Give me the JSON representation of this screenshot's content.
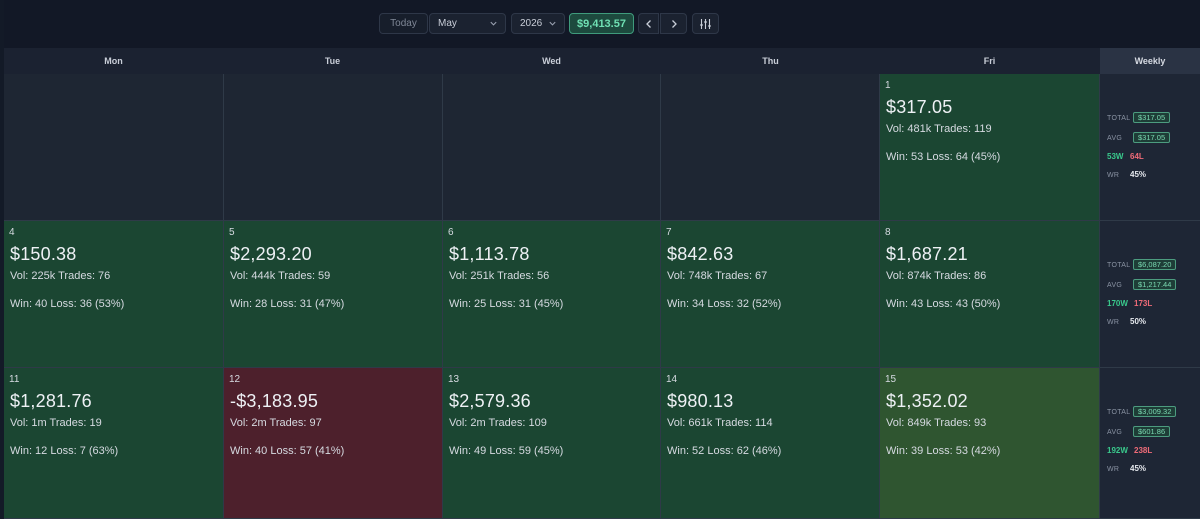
{
  "toolbar": {
    "today_label": "Today",
    "month": "May",
    "year": "2026",
    "total": "$9,413.57"
  },
  "days_header": [
    "Mon",
    "Tue",
    "Wed",
    "Thu",
    "Fri"
  ],
  "weekly_header": "Weekly",
  "weeks": [
    {
      "days": [
        null,
        null,
        null,
        null,
        {
          "day": "1",
          "pnl": "$317.05",
          "vol": "Vol: 481k Trades: 119",
          "wl": "Win: 53 Loss: 64 (45%)",
          "tone": "green"
        }
      ],
      "weekly": {
        "total_label": "TOTAL",
        "total": "$317.05",
        "avg_label": "AVG",
        "avg": "$317.05",
        "wins": "53W",
        "losses": "64L",
        "wr_label": "WR",
        "wr": "45%"
      }
    },
    {
      "days": [
        {
          "day": "4",
          "pnl": "$150.38",
          "vol": "Vol: 225k Trades: 76",
          "wl": "Win: 40 Loss: 36 (53%)",
          "tone": "green"
        },
        {
          "day": "5",
          "pnl": "$2,293.20",
          "vol": "Vol: 444k Trades: 59",
          "wl": "Win: 28 Loss: 31 (47%)",
          "tone": "green"
        },
        {
          "day": "6",
          "pnl": "$1,113.78",
          "vol": "Vol: 251k Trades: 56",
          "wl": "Win: 25 Loss: 31 (45%)",
          "tone": "green"
        },
        {
          "day": "7",
          "pnl": "$842.63",
          "vol": "Vol: 748k Trades: 67",
          "wl": "Win: 34 Loss: 32 (52%)",
          "tone": "green"
        },
        {
          "day": "8",
          "pnl": "$1,687.21",
          "vol": "Vol: 874k Trades: 86",
          "wl": "Win: 43 Loss: 43 (50%)",
          "tone": "green"
        }
      ],
      "weekly": {
        "total_label": "TOTAL",
        "total": "$6,087.20",
        "avg_label": "AVG",
        "avg": "$1,217.44",
        "wins": "170W",
        "losses": "173L",
        "wr_label": "WR",
        "wr": "50%"
      }
    },
    {
      "days": [
        {
          "day": "11",
          "pnl": "$1,281.76",
          "vol": "Vol: 1m Trades: 19",
          "wl": "Win: 12 Loss: 7 (63%)",
          "tone": "green"
        },
        {
          "day": "12",
          "pnl": "-$3,183.95",
          "vol": "Vol: 2m Trades: 97",
          "wl": "Win: 40 Loss: 57 (41%)",
          "tone": "red"
        },
        {
          "day": "13",
          "pnl": "$2,579.36",
          "vol": "Vol: 2m Trades: 109",
          "wl": "Win: 49 Loss: 59 (45%)",
          "tone": "green"
        },
        {
          "day": "14",
          "pnl": "$980.13",
          "vol": "Vol: 661k Trades: 114",
          "wl": "Win: 52 Loss: 62 (46%)",
          "tone": "green"
        },
        {
          "day": "15",
          "pnl": "$1,352.02",
          "vol": "Vol: 849k Trades: 93",
          "wl": "Win: 39 Loss: 53 (42%)",
          "tone": "olive"
        }
      ],
      "weekly": {
        "total_label": "TOTAL",
        "total": "$3,009.32",
        "avg_label": "AVG",
        "avg": "$601.86",
        "wins": "192W",
        "losses": "238L",
        "wr_label": "WR",
        "wr": "45%"
      }
    }
  ],
  "icons": {
    "month_dropdown": "chevron-down-icon",
    "year_dropdown": "chevron-down-icon",
    "prev": "chevron-left-icon",
    "next": "chevron-right-icon",
    "filter": "sliders-icon"
  },
  "colors": {
    "profit_cell": "#1b4632",
    "loss_cell": "#4d202c",
    "today_cell": "#2f5530",
    "win_text": "#39c98c",
    "loss_text": "#ef6b78",
    "accent": "#6fe0b3"
  }
}
